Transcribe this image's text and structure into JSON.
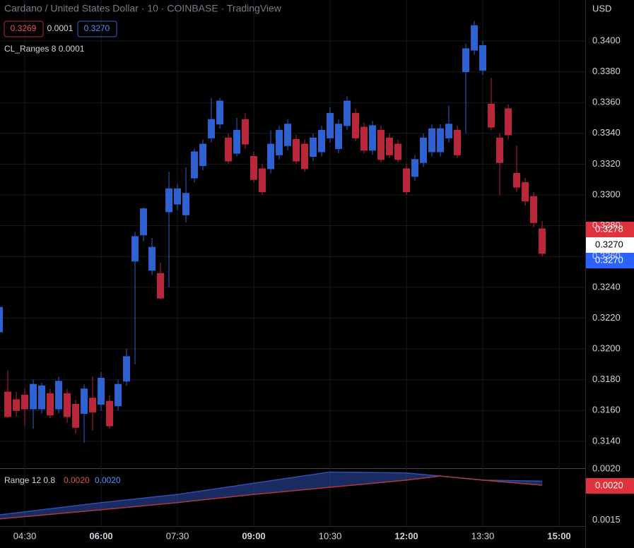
{
  "header": {
    "title": "Cardano / United States Dollar · 10 · COINBASE · TradingView",
    "bid": "0.3269",
    "spread": "0.0001",
    "ask": "0.3270",
    "indicator": "CL_Ranges 8 0.0001",
    "currency": "USD"
  },
  "price_labels": [
    "0.3278",
    "0.3270",
    "0.3270"
  ],
  "chart_data": [
    {
      "type": "candlestick",
      "x": [
        240,
        250,
        260,
        270,
        280,
        290,
        300,
        310,
        320,
        330,
        340,
        350,
        360,
        370,
        380,
        390,
        400,
        410,
        420,
        430,
        440,
        450,
        460,
        470,
        480,
        490,
        500,
        510,
        520,
        530,
        540,
        550,
        560,
        570,
        580,
        590,
        600,
        610,
        620,
        630,
        640,
        650,
        660,
        670,
        680,
        690,
        700,
        710,
        720,
        730,
        740,
        750,
        760,
        770,
        780,
        790,
        800,
        810,
        820,
        830,
        840,
        850,
        860,
        870,
        880
      ],
      "open": [
        0.3211,
        0.3172,
        0.3167,
        0.317,
        0.3161,
        0.3161,
        0.3171,
        0.3161,
        0.3171,
        0.3164,
        0.3158,
        0.3168,
        0.3164,
        0.3166,
        0.3163,
        0.3179,
        0.3257,
        0.3274,
        0.3251,
        0.3249,
        0.3289,
        0.3294,
        0.3287,
        0.3311,
        0.3319,
        0.3337,
        0.3346,
        0.3337,
        0.3327,
        0.3349,
        0.3325,
        0.3317,
        0.3317,
        0.3326,
        0.3332,
        0.3336,
        0.3333,
        0.3325,
        0.3328,
        0.3337,
        0.333,
        0.3345,
        0.3353,
        0.3344,
        0.3329,
        0.3342,
        0.3337,
        0.3333,
        0.3317,
        0.3312,
        0.3321,
        0.3328,
        0.3328,
        0.3337,
        0.3342,
        0.338,
        0.3394,
        0.3381,
        0.3359,
        0.3337,
        0.3356,
        0.3314,
        0.3308,
        0.3299,
        0.3278
      ],
      "high": [
        0.323,
        0.3186,
        0.3172,
        0.3174,
        0.318,
        0.3178,
        0.3174,
        0.3182,
        0.3174,
        0.3167,
        0.3177,
        0.3182,
        0.3185,
        0.317,
        0.318,
        0.32,
        0.3276,
        0.3292,
        0.3272,
        0.3256,
        0.3315,
        0.3307,
        0.3318,
        0.333,
        0.3336,
        0.3363,
        0.3363,
        0.334,
        0.335,
        0.3353,
        0.3328,
        0.332,
        0.3342,
        0.3345,
        0.3349,
        0.3339,
        0.3336,
        0.334,
        0.3345,
        0.3357,
        0.3349,
        0.3364,
        0.3356,
        0.3347,
        0.3348,
        0.3345,
        0.334,
        0.3336,
        0.332,
        0.3326,
        0.334,
        0.3346,
        0.3346,
        0.3358,
        0.3345,
        0.3398,
        0.3413,
        0.34,
        0.3376,
        0.334,
        0.3359,
        0.3332,
        0.3311,
        0.3302,
        0.3283
      ],
      "low": [
        0.3205,
        0.3155,
        0.3156,
        0.315,
        0.3148,
        0.3158,
        0.3155,
        0.3158,
        0.3152,
        0.3145,
        0.3139,
        0.3147,
        0.316,
        0.3148,
        0.316,
        0.3176,
        0.319,
        0.327,
        0.3248,
        0.3232,
        0.324,
        0.329,
        0.3282,
        0.3308,
        0.3316,
        0.3334,
        0.3343,
        0.332,
        0.3325,
        0.333,
        0.3308,
        0.33,
        0.3314,
        0.3323,
        0.3329,
        0.332,
        0.3315,
        0.3322,
        0.3325,
        0.3334,
        0.3327,
        0.3342,
        0.3335,
        0.3327,
        0.3326,
        0.3321,
        0.3324,
        0.3321,
        0.33,
        0.3309,
        0.3318,
        0.3325,
        0.3325,
        0.3334,
        0.3324,
        0.334,
        0.3391,
        0.3378,
        0.3342,
        0.33,
        0.3336,
        0.3302,
        0.3293,
        0.3279,
        0.326
      ],
      "close": [
        0.3227,
        0.3156,
        0.316,
        0.3161,
        0.3177,
        0.3176,
        0.3157,
        0.3179,
        0.3156,
        0.3149,
        0.3174,
        0.3159,
        0.3181,
        0.315,
        0.3177,
        0.3195,
        0.3273,
        0.3291,
        0.3266,
        0.3233,
        0.3304,
        0.3304,
        0.3301,
        0.3328,
        0.3333,
        0.3349,
        0.3361,
        0.3322,
        0.3342,
        0.3333,
        0.331,
        0.3302,
        0.3333,
        0.3342,
        0.3346,
        0.3322,
        0.3317,
        0.3337,
        0.3342,
        0.3353,
        0.3346,
        0.3361,
        0.3337,
        0.3329,
        0.3345,
        0.3323,
        0.3326,
        0.3323,
        0.3302,
        0.3323,
        0.3337,
        0.3343,
        0.3343,
        0.3346,
        0.3326,
        0.3395,
        0.341,
        0.3397,
        0.3344,
        0.3321,
        0.3339,
        0.3305,
        0.3296,
        0.3282,
        0.3262
      ],
      "up_color": "#2f62d0",
      "down_color": "#b8283a",
      "xlim": [
        240.8,
        930.8
      ],
      "xticks": [
        {
          "value": 270,
          "label": "04:30"
        },
        {
          "value": 360,
          "label": "06:00"
        },
        {
          "value": 450,
          "label": "07:30"
        },
        {
          "value": 540,
          "label": "09:00"
        },
        {
          "value": 630,
          "label": "10:30"
        },
        {
          "value": 720,
          "label": "12:00"
        },
        {
          "value": 810,
          "label": "13:30"
        },
        {
          "value": 900,
          "label": "15:00"
        }
      ],
      "ylim": [
        0.31225,
        0.34266
      ],
      "yticks": [
        {
          "value": 0.314,
          "label": "0.3140"
        },
        {
          "value": 0.316,
          "label": "0.3160"
        },
        {
          "value": 0.318,
          "label": "0.3180"
        },
        {
          "value": 0.32,
          "label": "0.3200"
        },
        {
          "value": 0.322,
          "label": "0.3220"
        },
        {
          "value": 0.324,
          "label": "0.3240"
        },
        {
          "value": 0.326,
          "label": "0.3260"
        },
        {
          "value": 0.328,
          "label": "0.3280"
        },
        {
          "value": 0.33,
          "label": "0.3300"
        },
        {
          "value": 0.332,
          "label": "0.3320"
        },
        {
          "value": 0.334,
          "label": "0.3340"
        },
        {
          "value": 0.336,
          "label": "0.3360"
        },
        {
          "value": 0.338,
          "label": "0.3380"
        },
        {
          "value": 0.34,
          "label": "0.3400"
        }
      ],
      "grid": true
    },
    {
      "type": "area-band",
      "title": "Range 12 0.8",
      "value_labels": [
        "0.0020",
        "0.0020"
      ],
      "x": [
        240,
        360,
        450,
        540,
        630,
        720,
        760,
        810,
        880
      ],
      "series": [
        {
          "name": "upper",
          "color": "#2f4fb0",
          "values": [
            0.00155,
            0.00167,
            0.00175,
            0.00186,
            0.00197,
            0.00196,
            0.00193,
            0.00189,
            0.00188
          ]
        },
        {
          "name": "lower",
          "color": "#b03a3a",
          "values": [
            0.00151,
            0.0016,
            0.00167,
            0.00175,
            0.00182,
            0.00189,
            0.00193,
            0.00189,
            0.00184
          ]
        }
      ],
      "ylim": [
        0.00144,
        0.002
      ],
      "yticks": [
        {
          "value": 0.0015,
          "label": "0.0015"
        },
        {
          "value": 0.002,
          "label": "0.0020"
        }
      ]
    }
  ]
}
